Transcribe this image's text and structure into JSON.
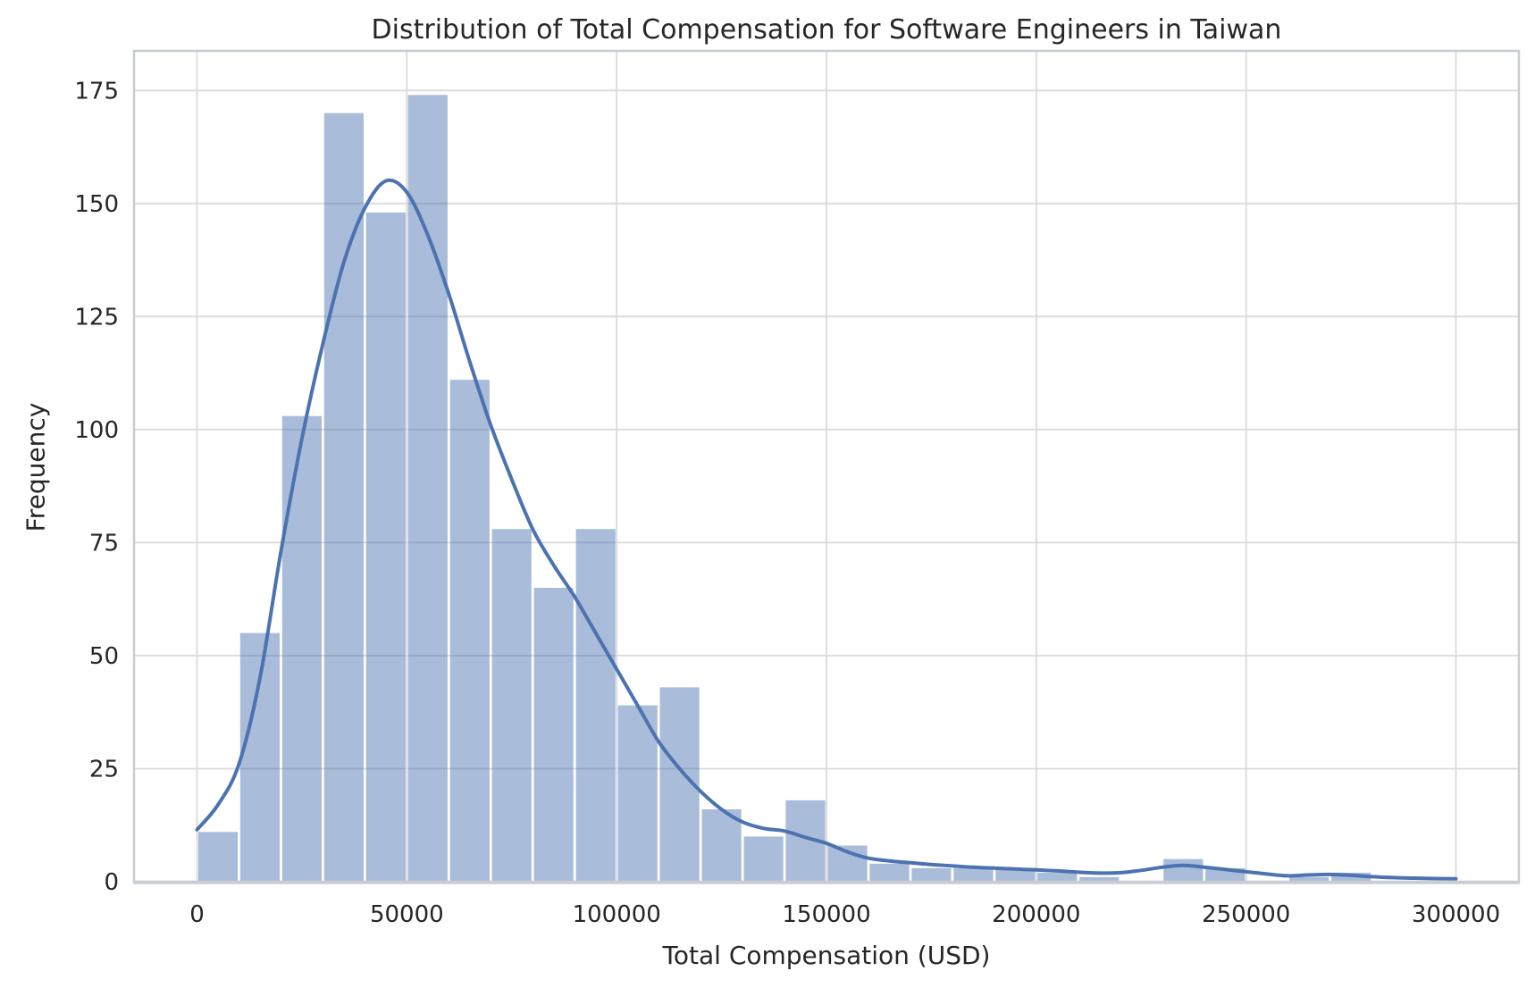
{
  "chart_data": {
    "type": "bar",
    "subtype": "histogram_with_kde",
    "title": "Distribution of Total Compensation for Software Engineers in Taiwan",
    "xlabel": "Total Compensation (USD)",
    "ylabel": "Frequency",
    "bin_width": 10000,
    "bin_edges": [
      0,
      10000,
      20000,
      30000,
      40000,
      50000,
      60000,
      70000,
      80000,
      90000,
      100000,
      110000,
      120000,
      130000,
      140000,
      150000,
      160000,
      170000,
      180000,
      190000,
      200000,
      210000,
      220000,
      230000,
      240000,
      250000,
      260000,
      270000,
      280000,
      290000,
      300000
    ],
    "values": [
      11,
      55,
      103,
      170,
      148,
      174,
      111,
      78,
      65,
      78,
      39,
      43,
      16,
      10,
      18,
      8,
      4,
      3,
      3,
      3,
      2,
      1,
      0,
      5,
      3,
      0,
      1,
      2,
      0,
      0
    ],
    "kde": {
      "x_start": 0,
      "x_step": 5000,
      "values": [
        11.5,
        17,
        26,
        45,
        73,
        98,
        119,
        137,
        149,
        155,
        152.5,
        143,
        130,
        115,
        101,
        89,
        78,
        70,
        63,
        55,
        47,
        39,
        31,
        25,
        20,
        16,
        13.2,
        11.8,
        11.2,
        9.8,
        8.5,
        6.6,
        5.2,
        4.6,
        4.2,
        3.8,
        3.5,
        3.2,
        3.0,
        2.8,
        2.6,
        2.4,
        2.1,
        1.9,
        2.0,
        2.5,
        3.2,
        3.6,
        3.2,
        2.7,
        2.2,
        1.7,
        1.3,
        1.5,
        1.6,
        1.4,
        1.1,
        0.9,
        0.8,
        0.7,
        0.65
      ]
    },
    "x_tick_values": [
      0,
      50000,
      100000,
      150000,
      200000,
      250000,
      300000
    ],
    "x_tick_labels": [
      "0",
      "50000",
      "100000",
      "150000",
      "200000",
      "250000",
      "300000"
    ],
    "y_tick_values": [
      0,
      25,
      50,
      75,
      100,
      125,
      150,
      175
    ],
    "y_tick_labels": [
      "0",
      "25",
      "50",
      "75",
      "100",
      "125",
      "150",
      "175"
    ],
    "xlim": [
      -15000,
      315000
    ],
    "ylim": [
      0,
      183.75
    ],
    "grid": true,
    "legend": null,
    "colors": {
      "bar_fill": "#4c72b0",
      "bar_opacity": 0.48,
      "kde_line": "#4c72b0",
      "grid": "#dadada",
      "spine": "#c8cdd2",
      "text": "#262626",
      "background": "#ffffff"
    }
  }
}
